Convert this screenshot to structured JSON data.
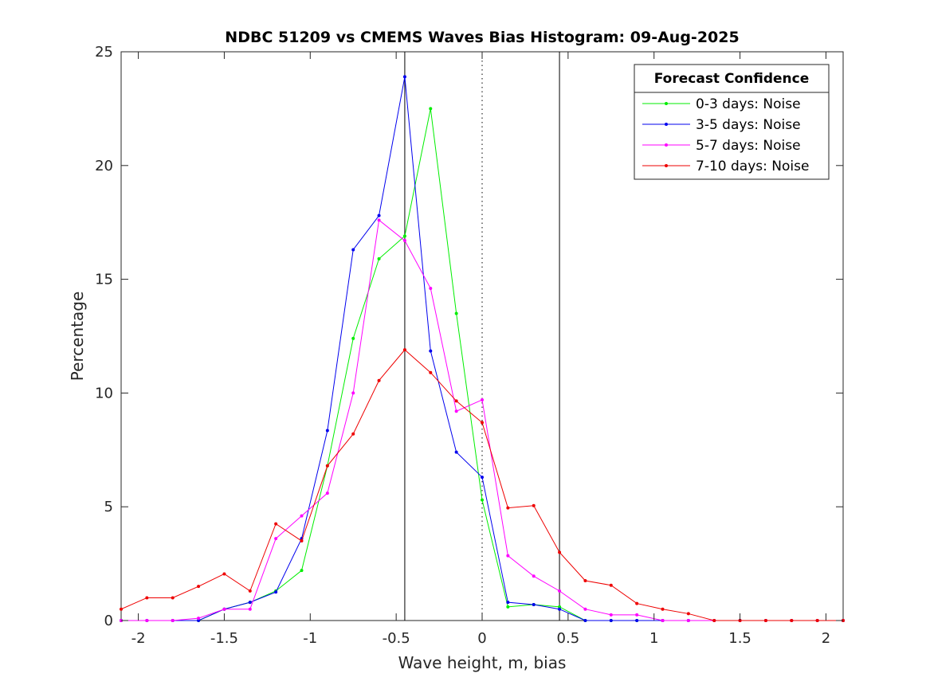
{
  "chart_data": {
    "type": "line",
    "title": "NDBC 51209 vs CMEMS Waves Bias Histogram: 09-Aug-2025",
    "xlabel": "Wave height, m, bias",
    "ylabel": "Percentage",
    "xlim": [
      -2.1,
      2.1
    ],
    "ylim": [
      0,
      25
    ],
    "xticks": [
      -2,
      -1.5,
      -1,
      -0.5,
      0,
      0.5,
      1,
      1.5,
      2
    ],
    "xtick_labels": [
      "-2",
      "-1.5",
      "-1",
      "-0.5",
      "0",
      "0.5",
      "1",
      "1.5",
      "2"
    ],
    "yticks": [
      0,
      5,
      10,
      15,
      20,
      25
    ],
    "ytick_labels": [
      "0",
      "5",
      "10",
      "15",
      "20",
      "25"
    ],
    "grid": false,
    "legend": {
      "title": "Forecast Confidence",
      "placement": "top-right"
    },
    "reference_lines": [
      {
        "x": -0.45,
        "style": "solid"
      },
      {
        "x": 0,
        "style": "dotted"
      },
      {
        "x": 0.45,
        "style": "solid"
      }
    ],
    "x": [
      -2.1,
      -1.95,
      -1.8,
      -1.65,
      -1.5,
      -1.35,
      -1.2,
      -1.05,
      -0.9,
      -0.75,
      -0.6,
      -0.45,
      -0.3,
      -0.15,
      0,
      0.15,
      0.3,
      0.45,
      0.6,
      0.75,
      0.9,
      1.05,
      1.2,
      1.35,
      1.5,
      1.65,
      1.8,
      1.95,
      2.1
    ],
    "series": [
      {
        "name": "0-3 days: Noise",
        "color": "#00ee00",
        "values": [
          0,
          0,
          0,
          0,
          0.5,
          0.8,
          1.3,
          2.2,
          6.8,
          12.4,
          15.9,
          16.9,
          22.5,
          13.5,
          5.3,
          0.6,
          0.7,
          0.6,
          0,
          0,
          0,
          0,
          0,
          0,
          0,
          0,
          0,
          0,
          0
        ]
      },
      {
        "name": "3-5 days: Noise",
        "color": "#0000ee",
        "values": [
          0,
          0,
          0,
          0,
          0.5,
          0.8,
          1.25,
          3.6,
          8.35,
          16.3,
          17.8,
          23.9,
          11.85,
          7.4,
          6.3,
          0.8,
          0.7,
          0.5,
          0,
          0,
          0,
          0,
          0,
          0,
          0,
          0,
          0,
          0,
          0
        ]
      },
      {
        "name": "5-7 days: Noise",
        "color": "#ff00ff",
        "values": [
          0,
          0,
          0,
          0.1,
          0.5,
          0.5,
          3.6,
          4.6,
          5.6,
          10.0,
          17.6,
          16.7,
          14.6,
          9.2,
          9.7,
          2.85,
          1.95,
          1.3,
          0.5,
          0.25,
          0.25,
          0,
          0,
          0,
          0,
          0,
          0,
          0,
          0
        ]
      },
      {
        "name": "7-10 days: Noise",
        "color": "#ee0000",
        "values": [
          0.5,
          1.0,
          1.0,
          1.5,
          2.05,
          1.3,
          4.25,
          3.5,
          6.8,
          8.2,
          10.55,
          11.9,
          10.9,
          9.65,
          8.7,
          4.95,
          5.05,
          3.0,
          1.75,
          1.55,
          0.75,
          0.5,
          0.3,
          0,
          0,
          0,
          0,
          0,
          0
        ]
      }
    ]
  }
}
